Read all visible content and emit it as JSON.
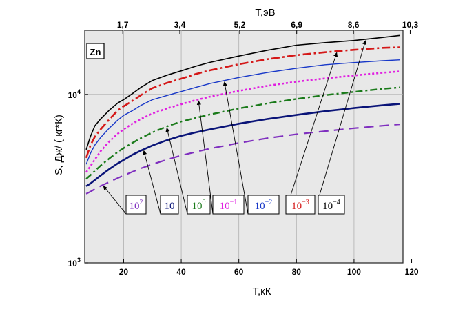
{
  "chart_data": {
    "type": "line",
    "element_label": "Zn",
    "xlabel": "T,кК",
    "x2label": "T,эВ",
    "ylabel": "S, Дж/ ( кг*К)",
    "xlim": [
      6.5,
      117
    ],
    "ylim": [
      1000,
      24000
    ],
    "yscale": "log",
    "grid": true,
    "x_ticks": [
      20,
      40,
      60,
      80,
      100,
      120
    ],
    "x_tick_labels": [
      "20",
      "40",
      "60",
      "80",
      "100",
      "120"
    ],
    "x2_ticks": [
      19.7,
      39.5,
      60.3,
      80.1,
      99.8,
      119.5
    ],
    "x2_tick_labels": [
      "1,7",
      "3,4",
      "5,2",
      "6,9",
      "8,6",
      "10,3"
    ],
    "y_ticks": [
      1000,
      10000
    ],
    "y_tick_labels": [
      {
        "base": "10",
        "exp": "3"
      },
      {
        "base": "10",
        "exp": "4"
      }
    ],
    "x": [
      7,
      8.5,
      10,
      12,
      15,
      18,
      20,
      23,
      26,
      30,
      35,
      40,
      45,
      50,
      60,
      70,
      80,
      90,
      100,
      110,
      116
    ],
    "series": [
      {
        "label_base": "10",
        "label_exp": "2",
        "color": "#7f2fbf",
        "dash": "14 8",
        "width": 2.2,
        "values": [
          2570,
          2650,
          2740,
          2860,
          3020,
          3190,
          3300,
          3470,
          3640,
          3850,
          4100,
          4340,
          4550,
          4770,
          5150,
          5500,
          5800,
          6050,
          6300,
          6520,
          6650
        ]
      },
      {
        "label_base": "10",
        "label_exp": "",
        "color": "#0a1478",
        "dash": "",
        "width": 2.6,
        "values": [
          2850,
          2960,
          3100,
          3300,
          3600,
          3900,
          4080,
          4380,
          4640,
          4980,
          5350,
          5680,
          5950,
          6200,
          6700,
          7150,
          7550,
          7950,
          8300,
          8620,
          8800
        ]
      },
      {
        "label_base": "10",
        "label_exp": "0",
        "color": "#1a7a1a",
        "dash": "10 4 3 4",
        "width": 2.4,
        "values": [
          3150,
          3320,
          3510,
          3780,
          4160,
          4560,
          4800,
          5150,
          5500,
          5950,
          6450,
          6900,
          7250,
          7600,
          8250,
          8850,
          9400,
          9900,
          10350,
          10800,
          11000
        ]
      },
      {
        "label_base": "10",
        "label_exp": "−1",
        "color": "#e020e0",
        "dash": "3 3",
        "width": 2.6,
        "values": [
          3450,
          3760,
          4100,
          4600,
          5250,
          5850,
          6200,
          6700,
          7150,
          7700,
          8250,
          8750,
          9250,
          9700,
          10500,
          11250,
          11900,
          12450,
          12950,
          13450,
          13700
        ]
      },
      {
        "label_base": "10",
        "label_exp": "−2",
        "color": "#1838c8",
        "dash": "",
        "width": 1.4,
        "values": [
          3850,
          4480,
          5000,
          5550,
          6300,
          7050,
          7500,
          8000,
          8600,
          9300,
          9850,
          10400,
          11000,
          11600,
          12600,
          13500,
          14300,
          15000,
          15450,
          15850,
          16050
        ]
      },
      {
        "label_base": "10",
        "label_exp": "−3",
        "color": "#d41818",
        "dash": "12 4 3 4",
        "width": 2.6,
        "values": [
          4200,
          5000,
          5600,
          6200,
          7100,
          8050,
          8500,
          9150,
          9900,
          10900,
          11700,
          12400,
          13200,
          13900,
          15100,
          16200,
          17100,
          17800,
          18400,
          18900,
          19050
        ]
      },
      {
        "label_base": "10",
        "label_exp": "−4",
        "color": "#000000",
        "dash": "",
        "width": 1.6,
        "values": [
          4700,
          5650,
          6500,
          7150,
          8050,
          8900,
          9300,
          10100,
          11000,
          12100,
          13000,
          13800,
          14700,
          15500,
          16900,
          18300,
          19600,
          20300,
          20900,
          21800,
          22400
        ]
      }
    ]
  }
}
